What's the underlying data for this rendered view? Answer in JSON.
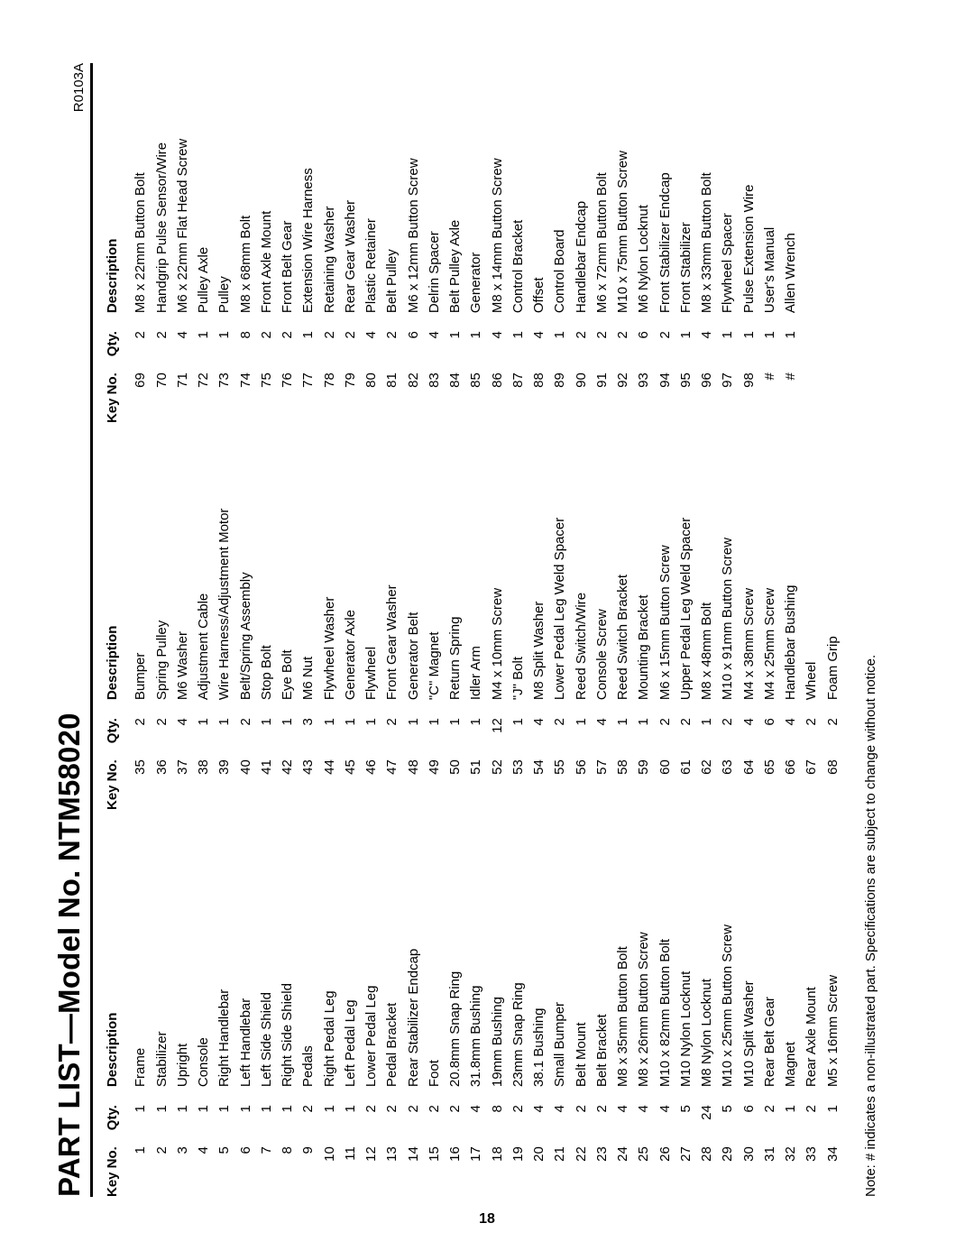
{
  "header": {
    "title": "PART LIST—Model No. NTM58020",
    "revision": "R0103A"
  },
  "table": {
    "headers": {
      "key": "Key No.",
      "qty": "Qty.",
      "desc": "Description"
    },
    "columns": [
      [
        {
          "key": "1",
          "qty": "1",
          "desc": "Frame"
        },
        {
          "key": "2",
          "qty": "1",
          "desc": "Stabilizer"
        },
        {
          "key": "3",
          "qty": "1",
          "desc": "Upright"
        },
        {
          "key": "4",
          "qty": "1",
          "desc": "Console"
        },
        {
          "key": "5",
          "qty": "1",
          "desc": "Right Handlebar"
        },
        {
          "key": "6",
          "qty": "1",
          "desc": "Left Handlebar"
        },
        {
          "key": "7",
          "qty": "1",
          "desc": "Left Side Shield"
        },
        {
          "key": "8",
          "qty": "1",
          "desc": "Right Side Shield"
        },
        {
          "key": "9",
          "qty": "2",
          "desc": "Pedals"
        },
        {
          "key": "10",
          "qty": "1",
          "desc": "Right Pedal Leg"
        },
        {
          "key": "11",
          "qty": "1",
          "desc": "Left Pedal Leg"
        },
        {
          "key": "12",
          "qty": "2",
          "desc": "Lower Pedal Leg"
        },
        {
          "key": "13",
          "qty": "2",
          "desc": "Pedal Bracket"
        },
        {
          "key": "14",
          "qty": "2",
          "desc": "Rear Stabilizer Endcap"
        },
        {
          "key": "15",
          "qty": "2",
          "desc": "Foot"
        },
        {
          "key": "16",
          "qty": "2",
          "desc": "20.8mm Snap Ring"
        },
        {
          "key": "17",
          "qty": "4",
          "desc": "31.8mm Bushing"
        },
        {
          "key": "18",
          "qty": "8",
          "desc": "19mm Bushing"
        },
        {
          "key": "19",
          "qty": "2",
          "desc": "23mm Snap Ring"
        },
        {
          "key": "20",
          "qty": "4",
          "desc": "38.1 Bushing"
        },
        {
          "key": "21",
          "qty": "4",
          "desc": "Small Bumper"
        },
        {
          "key": "22",
          "qty": "2",
          "desc": "Belt Mount"
        },
        {
          "key": "23",
          "qty": "2",
          "desc": "Belt Bracket"
        },
        {
          "key": "24",
          "qty": "4",
          "desc": "M8 x 35mm Button Bolt"
        },
        {
          "key": "25",
          "qty": "4",
          "desc": "M8 x 26mm Button Screw"
        },
        {
          "key": "26",
          "qty": "4",
          "desc": "M10 x 82mm Button Bolt"
        },
        {
          "key": "27",
          "qty": "5",
          "desc": "M10 Nylon Locknut"
        },
        {
          "key": "28",
          "qty": "24",
          "desc": "M8 Nylon Locknut"
        },
        {
          "key": "29",
          "qty": "5",
          "desc": "M10 x 25mm Button Screw"
        },
        {
          "key": "30",
          "qty": "6",
          "desc": "M10 Split Washer"
        },
        {
          "key": "31",
          "qty": "2",
          "desc": "Rear Belt Gear"
        },
        {
          "key": "32",
          "qty": "1",
          "desc": "Magnet"
        },
        {
          "key": "33",
          "qty": "2",
          "desc": "Rear Axle Mount"
        },
        {
          "key": "34",
          "qty": "1",
          "desc": "M5 x 16mm Screw"
        }
      ],
      [
        {
          "key": "35",
          "qty": "2",
          "desc": "Bumper"
        },
        {
          "key": "36",
          "qty": "2",
          "desc": "Spring Pulley"
        },
        {
          "key": "37",
          "qty": "4",
          "desc": "M6 Washer"
        },
        {
          "key": "38",
          "qty": "1",
          "desc": "Adjustment Cable"
        },
        {
          "key": "39",
          "qty": "1",
          "desc": "Wire Harness/Adjustment Motor"
        },
        {
          "key": "40",
          "qty": "2",
          "desc": "Belt/Spring Assembly"
        },
        {
          "key": "41",
          "qty": "1",
          "desc": "Stop Bolt"
        },
        {
          "key": "42",
          "qty": "1",
          "desc": "Eye Bolt"
        },
        {
          "key": "43",
          "qty": "3",
          "desc": "M6 Nut"
        },
        {
          "key": "44",
          "qty": "1",
          "desc": "Flywheel Washer"
        },
        {
          "key": "45",
          "qty": "1",
          "desc": "Generator Axle"
        },
        {
          "key": "46",
          "qty": "1",
          "desc": "Flywheel"
        },
        {
          "key": "47",
          "qty": "2",
          "desc": "Front Gear Washer"
        },
        {
          "key": "48",
          "qty": "1",
          "desc": "Generator Belt"
        },
        {
          "key": "49",
          "qty": "1",
          "desc": "\"C\" Magnet"
        },
        {
          "key": "50",
          "qty": "1",
          "desc": "Return Spring"
        },
        {
          "key": "51",
          "qty": "1",
          "desc": "Idler Arm"
        },
        {
          "key": "52",
          "qty": "12",
          "desc": "M4 x 10mm Screw"
        },
        {
          "key": "53",
          "qty": "1",
          "desc": "\"J\" Bolt"
        },
        {
          "key": "54",
          "qty": "4",
          "desc": "M8 Split Washer"
        },
        {
          "key": "55",
          "qty": "2",
          "desc": "Lower Pedal Leg Weld Spacer"
        },
        {
          "key": "56",
          "qty": "1",
          "desc": "Reed Switch/Wire"
        },
        {
          "key": "57",
          "qty": "4",
          "desc": "Console Screw"
        },
        {
          "key": "58",
          "qty": "1",
          "desc": "Reed Switch Bracket"
        },
        {
          "key": "59",
          "qty": "1",
          "desc": "Mounting Bracket"
        },
        {
          "key": "60",
          "qty": "2",
          "desc": "M6 x 15mm Button Screw"
        },
        {
          "key": "61",
          "qty": "2",
          "desc": "Upper Pedal Leg Weld Spacer"
        },
        {
          "key": "62",
          "qty": "1",
          "desc": "M8 x 48mm Bolt"
        },
        {
          "key": "63",
          "qty": "2",
          "desc": "M10 x 91mm Button Screw"
        },
        {
          "key": "64",
          "qty": "4",
          "desc": "M4 x 38mm Screw"
        },
        {
          "key": "65",
          "qty": "6",
          "desc": "M4 x 25mm Screw"
        },
        {
          "key": "66",
          "qty": "4",
          "desc": "Handlebar Bushing"
        },
        {
          "key": "67",
          "qty": "2",
          "desc": "Wheel"
        },
        {
          "key": "68",
          "qty": "2",
          "desc": "Foam Grip"
        }
      ],
      [
        {
          "key": "69",
          "qty": "2",
          "desc": "M8 x 22mm Button Bolt"
        },
        {
          "key": "70",
          "qty": "2",
          "desc": "Handgrip Pulse Sensor/Wire"
        },
        {
          "key": "71",
          "qty": "4",
          "desc": "M6 x 22mm Flat Head Screw"
        },
        {
          "key": "72",
          "qty": "1",
          "desc": "Pulley Axle"
        },
        {
          "key": "73",
          "qty": "1",
          "desc": "Pulley"
        },
        {
          "key": "74",
          "qty": "8",
          "desc": "M8 x 68mm Bolt"
        },
        {
          "key": "75",
          "qty": "2",
          "desc": "Front Axle Mount"
        },
        {
          "key": "76",
          "qty": "2",
          "desc": "Front Belt Gear"
        },
        {
          "key": "77",
          "qty": "1",
          "desc": "Extension Wire Harness"
        },
        {
          "key": "78",
          "qty": "2",
          "desc": "Retaining Washer"
        },
        {
          "key": "79",
          "qty": "2",
          "desc": "Rear Gear Washer"
        },
        {
          "key": "80",
          "qty": "4",
          "desc": "Plastic Retainer"
        },
        {
          "key": "81",
          "qty": "2",
          "desc": "Belt Pulley"
        },
        {
          "key": "82",
          "qty": "6",
          "desc": "M6 x 12mm Button Screw"
        },
        {
          "key": "83",
          "qty": "4",
          "desc": "Delrin Spacer"
        },
        {
          "key": "84",
          "qty": "1",
          "desc": "Belt Pulley Axle"
        },
        {
          "key": "85",
          "qty": "1",
          "desc": "Generator"
        },
        {
          "key": "86",
          "qty": "4",
          "desc": "M8 x 14mm Button Screw"
        },
        {
          "key": "87",
          "qty": "1",
          "desc": "Control Bracket"
        },
        {
          "key": "88",
          "qty": "4",
          "desc": "Offset"
        },
        {
          "key": "89",
          "qty": "1",
          "desc": "Control Board"
        },
        {
          "key": "90",
          "qty": "2",
          "desc": "Handlebar Endcap"
        },
        {
          "key": "91",
          "qty": "2",
          "desc": "M6 x 72mm Button Bolt"
        },
        {
          "key": "92",
          "qty": "2",
          "desc": "M10 x 75mm Button Screw"
        },
        {
          "key": "93",
          "qty": "6",
          "desc": "M6 Nylon Locknut"
        },
        {
          "key": "94",
          "qty": "2",
          "desc": "Front Stabilizer Endcap"
        },
        {
          "key": "95",
          "qty": "1",
          "desc": "Front Stabilizer"
        },
        {
          "key": "96",
          "qty": "4",
          "desc": "M8 x 33mm Button Bolt"
        },
        {
          "key": "97",
          "qty": "1",
          "desc": "Flywheel Spacer"
        },
        {
          "key": "98",
          "qty": "1",
          "desc": "Pulse Extension Wire"
        },
        {
          "key": "#",
          "qty": "1",
          "desc": "User's Manual"
        },
        {
          "key": "#",
          "qty": "1",
          "desc": "Allen Wrench"
        }
      ]
    ]
  },
  "footnote": "Note: # indicates a non-illustrated part. Specifications are subject to change without notice.",
  "pagenum": "18"
}
